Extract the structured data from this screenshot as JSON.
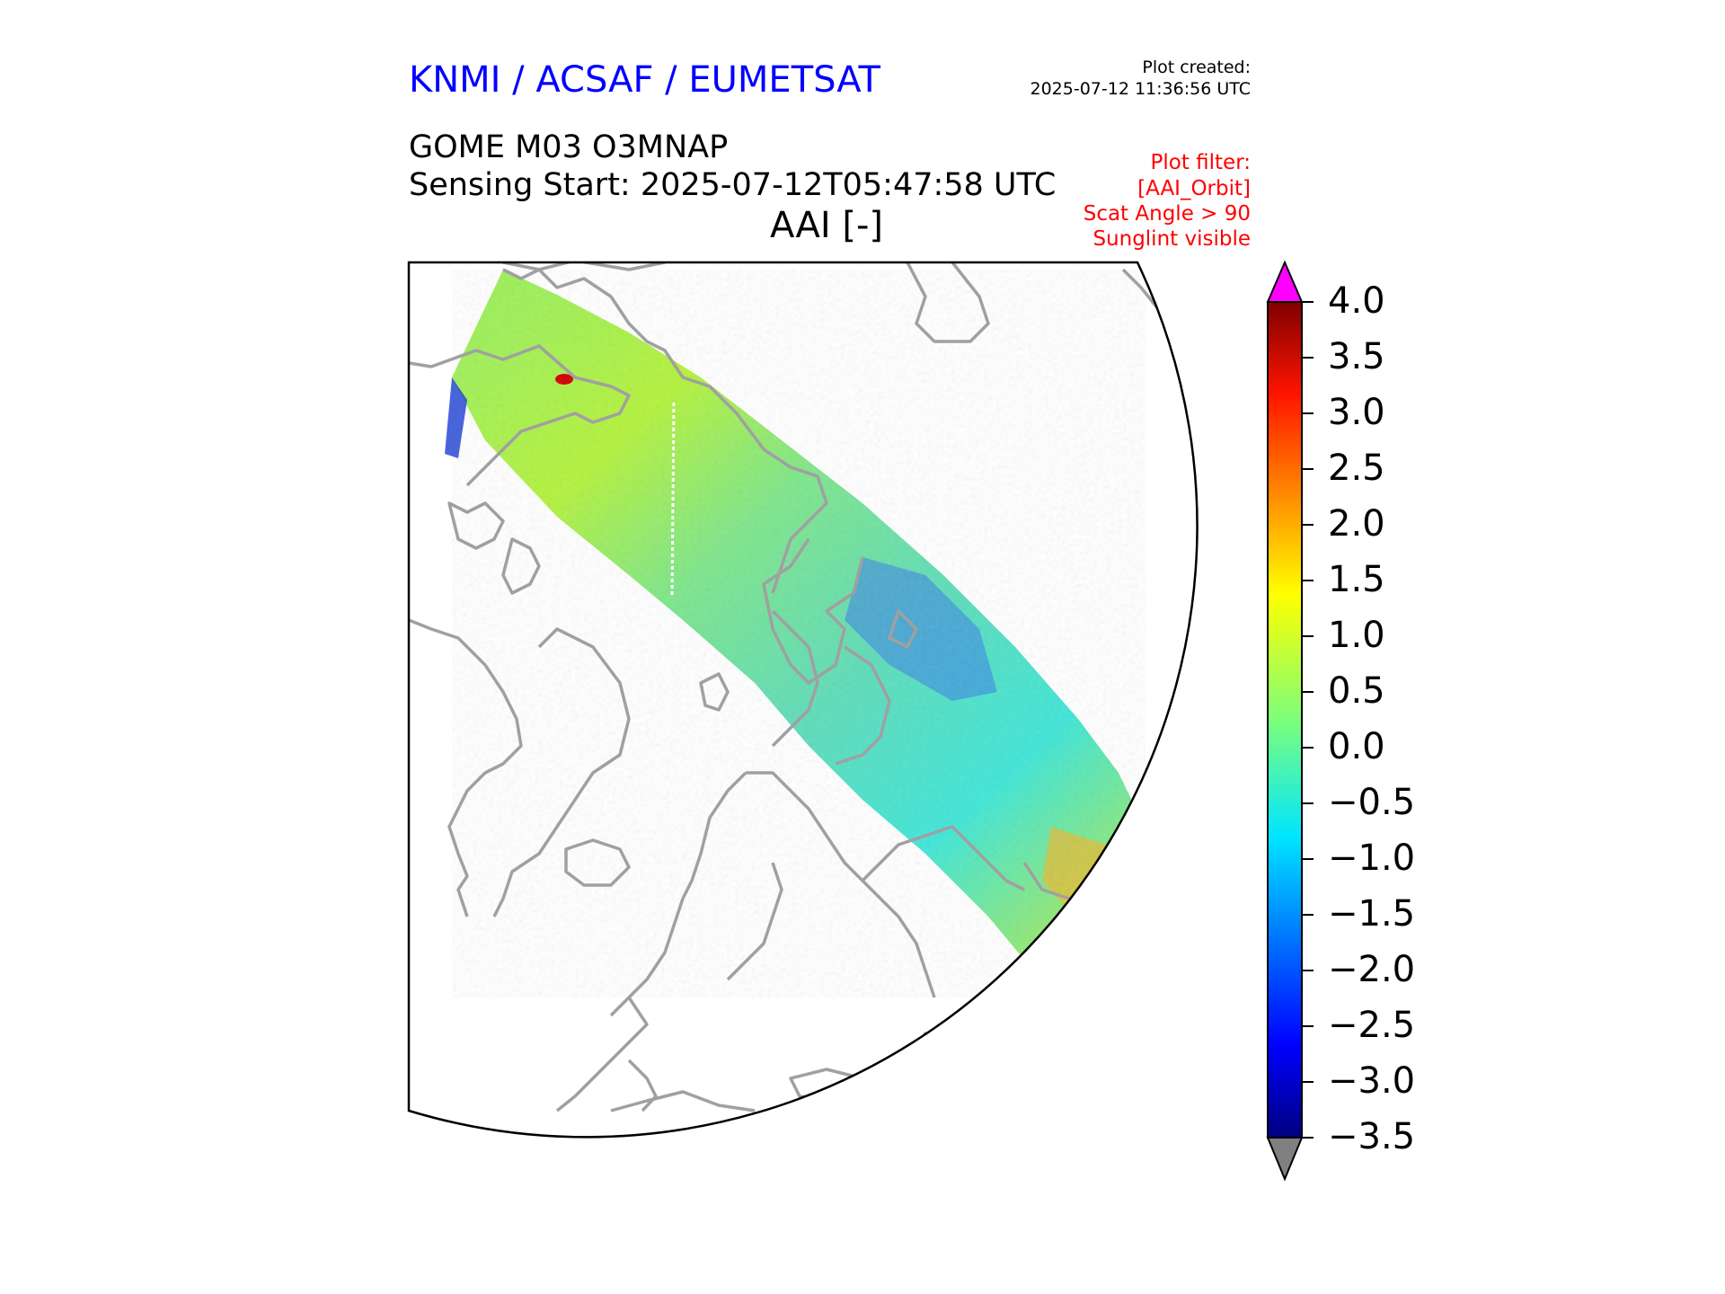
{
  "header": {
    "organization": "KNMI / ACSAF / EUMETSAT",
    "plot_created_label": "Plot created:",
    "plot_created_value": "2025-07-12 11:36:56 UTC"
  },
  "titles": {
    "product": "GOME M03 O3MNAP",
    "sensing_start": "Sensing Start: 2025-07-12T05:47:58 UTC",
    "variable": "AAI [-]"
  },
  "filter": {
    "lines": [
      "Plot filter:",
      "[AAI_Orbit]",
      "Scat Angle > 90",
      "Sunglint visible"
    ]
  },
  "colorbar": {
    "min": -3.5,
    "max": 4.0,
    "ticks": [
      "4.0",
      "3.5",
      "3.0",
      "2.5",
      "2.0",
      "1.5",
      "1.0",
      "0.5",
      "0.0",
      "−0.5",
      "−1.0",
      "−1.5",
      "−2.0",
      "−2.5",
      "−3.0",
      "−3.5"
    ],
    "over_color": "#ff00ff",
    "under_color": "#808080"
  },
  "colors": {
    "title_blue": "#0000ff",
    "filter_red": "#ff0000",
    "coastline": "#a0a0a0"
  }
}
